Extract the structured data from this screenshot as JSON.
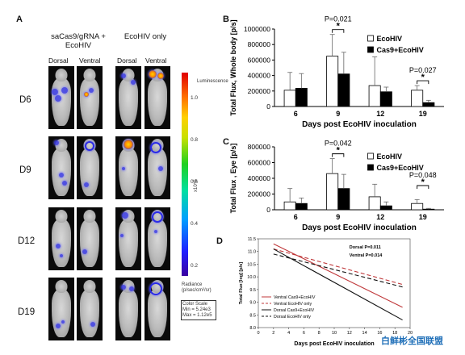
{
  "panel_a": {
    "letter": "A",
    "group1": "saCas9/gRNA + EcoHIV",
    "group2": "EcoHIV only",
    "dorsal": "Dorsal",
    "ventral": "Ventral",
    "rows": [
      "D6",
      "D9",
      "D12",
      "D19"
    ],
    "colorbar_title": "Luminescence",
    "colorbar_ticks": [
      "1.0",
      "0.8",
      "0.6",
      "0.4",
      "0.2"
    ],
    "colorbar_unit": "x10^5",
    "radiance_label": "Radiance (p/sec/cm²/sr)",
    "color_scale_label": "Color Scale",
    "color_scale_min": "Min = 5.24e3",
    "color_scale_max": "Max = 1.12e5"
  },
  "chart_data": [
    {
      "panel": "B",
      "type": "bar",
      "ylabel": "Total Flux, Whole body [p/s]",
      "xlabel": "Days post EcoHIV inoculation",
      "categories": [
        "6",
        "9",
        "12",
        "19"
      ],
      "ylim": [
        0,
        1000000
      ],
      "yticks": [
        "0",
        "200000",
        "400000",
        "600000",
        "800000",
        "1000000"
      ],
      "series": [
        {
          "name": "EcoHIV",
          "values": [
            210000,
            650000,
            270000,
            210000
          ],
          "errors": [
            230000,
            280000,
            370000,
            60000
          ]
        },
        {
          "name": "Cas9+EcoHIV",
          "values": [
            235000,
            420000,
            190000,
            50000
          ],
          "errors": [
            190000,
            280000,
            60000,
            30000
          ]
        }
      ],
      "annotations": [
        {
          "text": "P=0.021",
          "category": "9"
        },
        {
          "text": "*",
          "category": "9"
        },
        {
          "text": "P=0.027",
          "category": "19"
        },
        {
          "text": "*",
          "category": "19"
        }
      ]
    },
    {
      "panel": "C",
      "type": "bar",
      "ylabel": "Total Flux , Eye [p/s]",
      "xlabel": "Days post EcoHIV inoculation",
      "categories": [
        "6",
        "9",
        "12",
        "19"
      ],
      "ylim": [
        0,
        800000
      ],
      "yticks": [
        "0",
        "200000",
        "400000",
        "600000",
        "800000"
      ],
      "series": [
        {
          "name": "EcoHIV",
          "values": [
            100000,
            460000,
            165000,
            80000
          ],
          "errors": [
            170000,
            190000,
            160000,
            50000
          ]
        },
        {
          "name": "Cas9+EcoHIV",
          "values": [
            80000,
            270000,
            50000,
            8000
          ],
          "errors": [
            70000,
            180000,
            50000,
            10000
          ]
        }
      ],
      "annotations": [
        {
          "text": "P=0.042",
          "category": "9"
        },
        {
          "text": "*",
          "category": "9"
        },
        {
          "text": "P=0.048",
          "category": "19"
        },
        {
          "text": "*",
          "category": "19"
        }
      ]
    },
    {
      "panel": "D",
      "type": "line",
      "ylabel": "Total Flux [log] [p/s]",
      "xlabel": "Days post EcoHIV inoculation",
      "xlim": [
        0,
        20
      ],
      "xticks": [
        "0",
        "2",
        "4",
        "6",
        "8",
        "10",
        "12",
        "14",
        "16",
        "18",
        "20"
      ],
      "ylim": [
        8.0,
        11.5
      ],
      "yticks": [
        "8.0",
        "8.5",
        "9.0",
        "9.5",
        "10.0",
        "10.5",
        "11.0",
        "11.5"
      ],
      "series": [
        {
          "name": "Ventral Cas9+EcoHIV",
          "color": "#c0393b",
          "dash": "solid",
          "x": [
            2,
            19
          ],
          "y": [
            11.3,
            8.8
          ]
        },
        {
          "name": "Ventral EcoHIV only",
          "color": "#c0393b",
          "dash": "dashed",
          "x": [
            2,
            19
          ],
          "y": [
            11.1,
            9.7
          ]
        },
        {
          "name": "Dorsal Cas9+EcoHIV",
          "color": "#111111",
          "dash": "solid",
          "x": [
            2,
            19
          ],
          "y": [
            11.1,
            8.3
          ]
        },
        {
          "name": "Dorsal EcoHIV only",
          "color": "#111111",
          "dash": "dashed",
          "x": [
            2,
            19
          ],
          "y": [
            10.9,
            9.6
          ]
        }
      ],
      "annotations": [
        "Dorsal P=0.011",
        "Ventral P=0.014"
      ]
    }
  ],
  "panel_letters": {
    "b": "B",
    "c": "C",
    "d": "D"
  },
  "watermark": {
    "text": "白鲜彬全国联盟",
    "color": "#1f6fb8"
  }
}
